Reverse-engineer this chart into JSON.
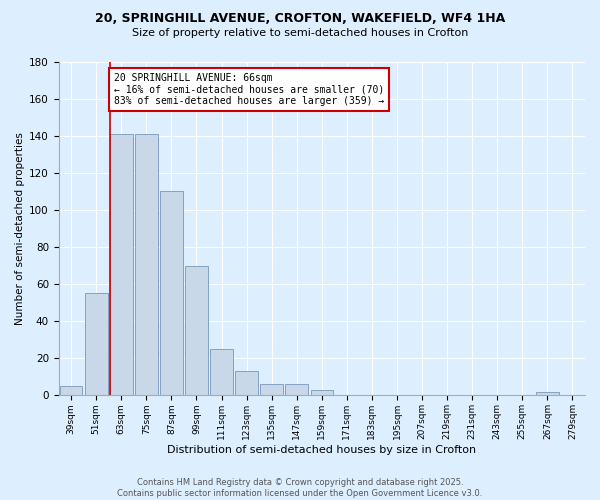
{
  "title": "20, SPRINGHILL AVENUE, CROFTON, WAKEFIELD, WF4 1HA",
  "subtitle": "Size of property relative to semi-detached houses in Crofton",
  "xlabel": "Distribution of semi-detached houses by size in Crofton",
  "ylabel": "Number of semi-detached properties",
  "bar_color": "#c8d8e8",
  "bar_edge_color": "#7799bb",
  "categories": [
    "39sqm",
    "51sqm",
    "63sqm",
    "75sqm",
    "87sqm",
    "99sqm",
    "111sqm",
    "123sqm",
    "135sqm",
    "147sqm",
    "159sqm",
    "171sqm",
    "183sqm",
    "195sqm",
    "207sqm",
    "219sqm",
    "231sqm",
    "243sqm",
    "255sqm",
    "267sqm",
    "279sqm"
  ],
  "values": [
    5,
    55,
    141,
    141,
    110,
    70,
    25,
    13,
    6,
    6,
    3,
    0,
    0,
    0,
    0,
    0,
    0,
    0,
    0,
    2,
    0
  ],
  "ylim": [
    0,
    180
  ],
  "yticks": [
    0,
    20,
    40,
    60,
    80,
    100,
    120,
    140,
    160,
    180
  ],
  "annotation_text": "20 SPRINGHILL AVENUE: 66sqm\n← 16% of semi-detached houses are smaller (70)\n83% of semi-detached houses are larger (359) →",
  "vline_color": "#cc0000",
  "annotation_box_color": "#ffffff",
  "annotation_box_edge": "#cc0000",
  "footer_text": "Contains HM Land Registry data © Crown copyright and database right 2025.\nContains public sector information licensed under the Open Government Licence v3.0.",
  "background_color": "#ddeeff",
  "plot_bg_color": "#ddeeff",
  "grid_color": "#ffffff",
  "vline_bar_index": 2
}
